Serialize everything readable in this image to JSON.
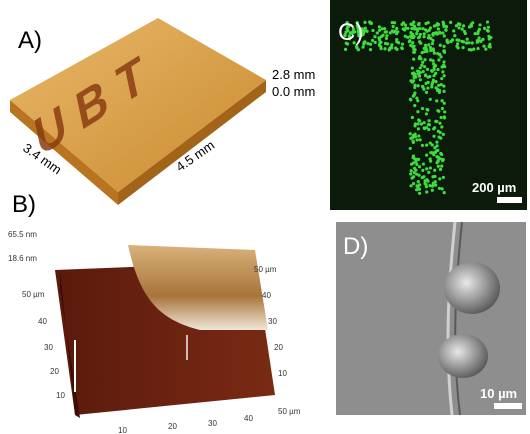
{
  "panels": [
    {
      "label": "A)",
      "engraved_text": "UBT",
      "height_labels": [
        "2.8 mm",
        "0.0 mm"
      ],
      "edge_labels": [
        "3.4 mm",
        "4.5 mm"
      ]
    },
    {
      "label": "B)",
      "z_labels": [
        "65.5 nm",
        "18.6 nm"
      ],
      "left_ticks": [
        "50 µm",
        "40",
        "30",
        "20",
        "10"
      ],
      "right_ticks": [
        "50 µm",
        "40",
        "30",
        "20",
        "10"
      ],
      "bottom_ticks": [
        "10",
        "20",
        "30",
        "40",
        "50 µm"
      ]
    },
    {
      "label": "C)",
      "scale_bar": "200 µm"
    },
    {
      "label": "D)",
      "scale_bar": "10 µm"
    }
  ]
}
